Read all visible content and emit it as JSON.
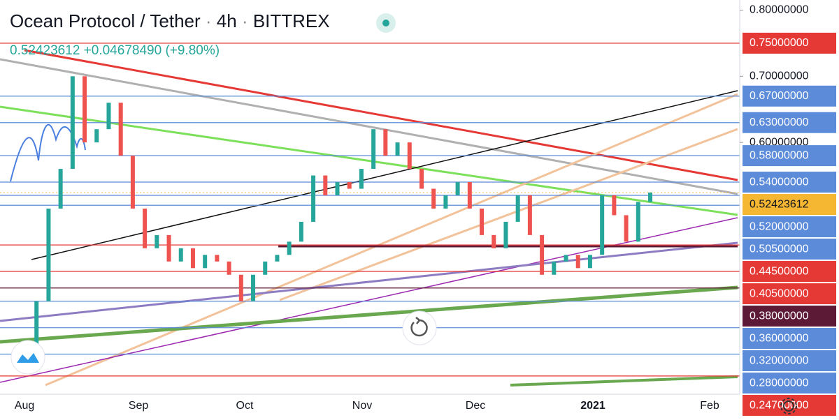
{
  "chart_data": {
    "type": "candlestick",
    "title": "Ocean Protocol / Tether",
    "interval": "4h",
    "exchange": "BITTREX",
    "last_price": "0.52423612",
    "change": "+0.04678490",
    "change_percent": "(+9.80%)",
    "x_labels": [
      "Aug",
      "Sep",
      "Oct",
      "Nov",
      "Dec",
      "2021",
      "Feb"
    ],
    "values": [
      0.26,
      0.36,
      0.5,
      0.56,
      0.7,
      0.6,
      0.62,
      0.66,
      0.58,
      0.5,
      0.44,
      0.46,
      0.42,
      0.44,
      0.41,
      0.43,
      0.42,
      0.4,
      0.36,
      0.4,
      0.42,
      0.43,
      0.45,
      0.48,
      0.55,
      0.52,
      0.54,
      0.53,
      0.56,
      0.62,
      0.58,
      0.6,
      0.56,
      0.53,
      0.5,
      0.52,
      0.54,
      0.5,
      0.46,
      0.44,
      0.48,
      0.52,
      0.46,
      0.4,
      0.42,
      0.43,
      0.41,
      0.43,
      0.52,
      0.49,
      0.45,
      0.51,
      0.52423612
    ],
    "up_color": "#26a69a",
    "down_color": "#ef5350",
    "ylim": [
      0.23,
      0.81
    ],
    "yticks": [
      0.8,
      0.7,
      0.6
    ],
    "levels": [
      {
        "value": 0.75,
        "label": "0.75000000",
        "color": "#e53935"
      },
      {
        "value": 0.67,
        "label": "0.67000000",
        "color": "#5b8bd9"
      },
      {
        "value": 0.63,
        "label": "0.63000000",
        "color": "#5b8bd9"
      },
      {
        "value": 0.58,
        "label": "0.58000000",
        "color": "#5b8bd9"
      },
      {
        "value": 0.54,
        "label": "0.54000000",
        "color": "#5b8bd9"
      },
      {
        "value": 0.52423612,
        "label": "0.52423612",
        "color": "#f5b731"
      },
      {
        "value": 0.52,
        "label": "0.52000000",
        "color": "#5b8bd9"
      },
      {
        "value": 0.505,
        "label": "0.50500000",
        "color": "#5b8bd9"
      },
      {
        "value": 0.445,
        "label": "0.44500000",
        "color": "#e53935"
      },
      {
        "value": 0.405,
        "label": "0.40500000",
        "color": "#e53935"
      },
      {
        "value": 0.38,
        "label": "0.38000000",
        "color": "#5d1a36"
      },
      {
        "value": 0.36,
        "label": "0.36000000",
        "color": "#5b8bd9"
      },
      {
        "value": 0.32,
        "label": "0.32000000",
        "color": "#5b8bd9"
      },
      {
        "value": 0.28,
        "label": "0.28000000",
        "color": "#5b8bd9"
      },
      {
        "value": 0.247,
        "label": "0.24700000",
        "color": "#e53935"
      }
    ]
  }
}
